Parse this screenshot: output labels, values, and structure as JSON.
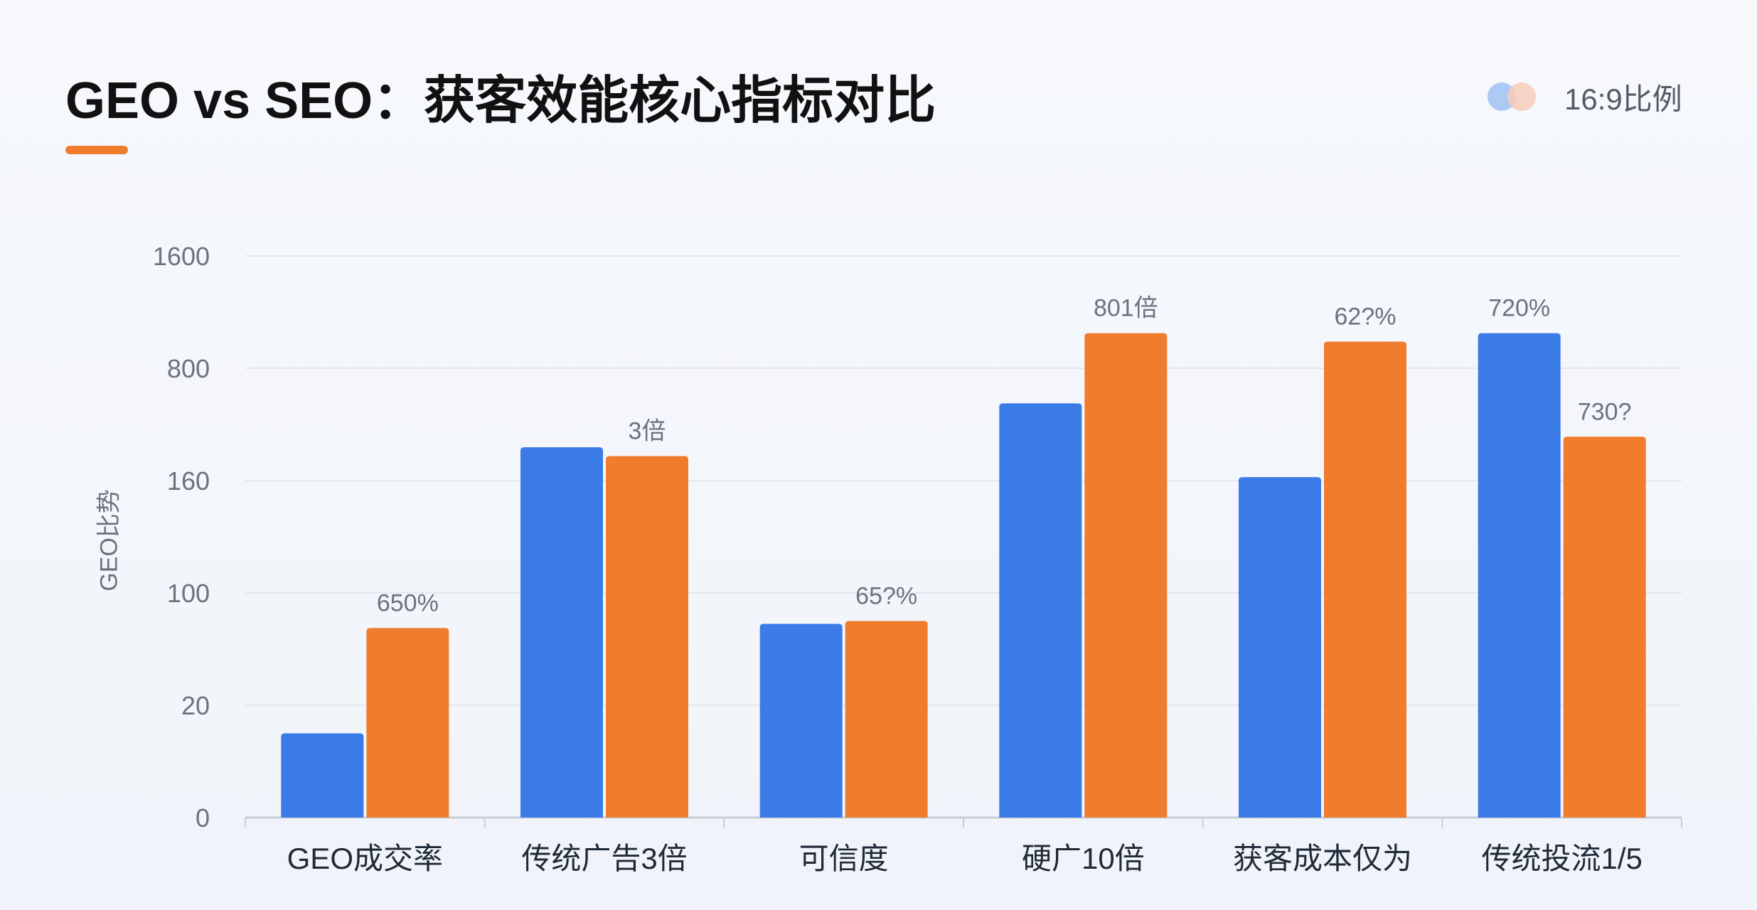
{
  "header": {
    "title": "GEO vs SEO：获客效能核心指标对比",
    "badge_text": "16:9比例"
  },
  "colors": {
    "geo": "#3b7be8",
    "seo": "#f07d2e",
    "accent": "#f07d2e",
    "grid": "#e3e7ee",
    "axis": "#c9ced6"
  },
  "chart_data": {
    "type": "bar",
    "title": "GEO vs SEO：获客效能核心指标对比",
    "ylabel": "GEO比势",
    "xlabel": "",
    "y_ticks": [
      0,
      20,
      100,
      160,
      800,
      1600
    ],
    "y_scale": "categorical-ticks (non-linear, evenly spaced tick labels)",
    "categories": [
      "GEO成交率",
      "传统广告3倍",
      "可信度",
      "硬广10倍",
      "获客成本仅为",
      "传统投流1/5"
    ],
    "series": [
      {
        "color": "#3b7be8",
        "values": [
          15,
          350,
          78,
          600,
          180,
          1050
        ]
      },
      {
        "color": "#f07d2e",
        "values": [
          75,
          300,
          80,
          1050,
          990,
          410
        ]
      }
    ],
    "data_labels": [
      {
        "category_index": 0,
        "series_index": 1,
        "text": "650%"
      },
      {
        "category_index": 1,
        "series_index": 1,
        "text": "3倍"
      },
      {
        "category_index": 2,
        "series_index": 1,
        "text": "65?%"
      },
      {
        "category_index": 3,
        "series_index": 1,
        "text": "801倍"
      },
      {
        "category_index": 4,
        "series_index": 1,
        "text": "62?%"
      },
      {
        "category_index": 5,
        "series_index": 0,
        "text": "720%"
      },
      {
        "category_index": 5,
        "series_index": 1,
        "text": "730?"
      }
    ],
    "grid": true,
    "legend": "none"
  }
}
